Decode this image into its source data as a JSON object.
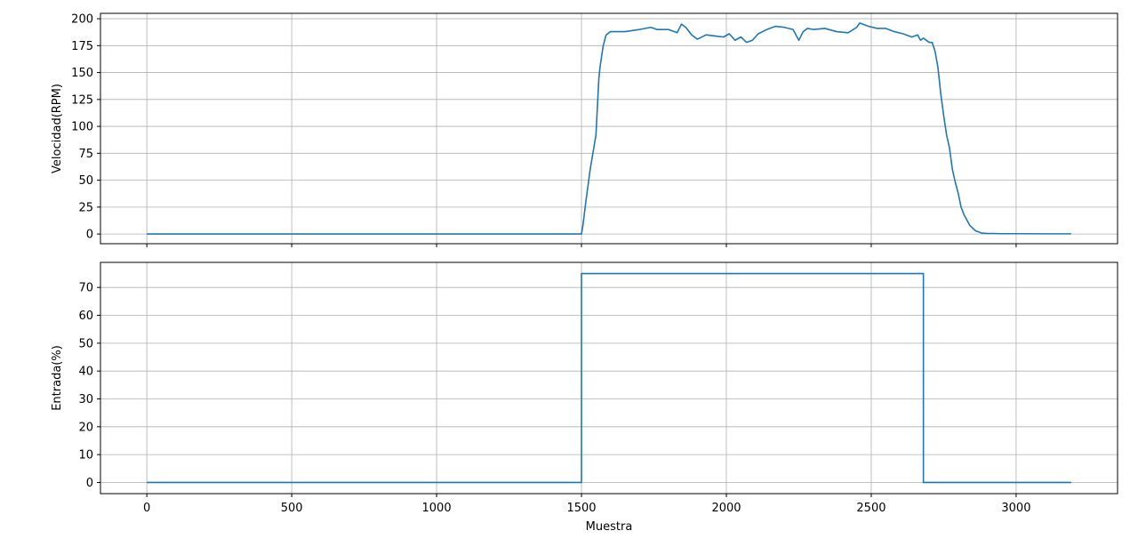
{
  "chart_data": [
    {
      "type": "line",
      "ylabel": "Velocidad(RPM)",
      "xlabel": "",
      "xlim": [
        -160,
        3350
      ],
      "ylim": [
        -9,
        205
      ],
      "xticks": [
        0,
        500,
        1000,
        1500,
        2000,
        2500,
        3000
      ],
      "xtick_labels_visible": false,
      "yticks": [
        0,
        25,
        50,
        75,
        100,
        125,
        150,
        175,
        200
      ],
      "grid": true,
      "color": "#1f77b4",
      "series": [
        {
          "x": [
            0,
            1500,
            1505,
            1515,
            1530,
            1550,
            1560,
            1565,
            1575,
            1585,
            1600,
            1620,
            1650,
            1700,
            1740,
            1760,
            1800,
            1830,
            1845,
            1860,
            1880,
            1900,
            1930,
            1960,
            1990,
            2010,
            2030,
            2050,
            2070,
            2090,
            2110,
            2140,
            2170,
            2200,
            2230,
            2250,
            2265,
            2280,
            2300,
            2340,
            2380,
            2420,
            2450,
            2460,
            2490,
            2520,
            2550,
            2580,
            2610,
            2640,
            2660,
            2670,
            2680,
            2700,
            2710,
            2720,
            2730,
            2740,
            2750,
            2760,
            2770,
            2780,
            2790,
            2800,
            2810,
            2820,
            2840,
            2860,
            2880,
            2900,
            2920,
            2950,
            3000,
            3100,
            3190
          ],
          "y": [
            0,
            0,
            8,
            30,
            60,
            92,
            145,
            157,
            175,
            185,
            188,
            188,
            188,
            190,
            192,
            190,
            190,
            187,
            195,
            192,
            185,
            181,
            185,
            184,
            183,
            186,
            180,
            183,
            178,
            180,
            186,
            190,
            193,
            192,
            190,
            180,
            188,
            191,
            190,
            191,
            188,
            187,
            192,
            196,
            193,
            191,
            191,
            188,
            186,
            183,
            185,
            180,
            182,
            178,
            178,
            170,
            155,
            130,
            110,
            92,
            80,
            60,
            48,
            38,
            25,
            18,
            8,
            3,
            1,
            0.5,
            0.5,
            0.3,
            0.3,
            0.2,
            0.2
          ]
        }
      ]
    },
    {
      "type": "line",
      "ylabel": "Entrada(%)",
      "xlabel": "Muestra",
      "xlim": [
        -160,
        3350
      ],
      "ylim": [
        -4,
        79
      ],
      "xticks": [
        0,
        500,
        1000,
        1500,
        2000,
        2500,
        3000
      ],
      "yticks": [
        0,
        10,
        20,
        30,
        40,
        50,
        60,
        70
      ],
      "grid": true,
      "color": "#1f77b4",
      "series": [
        {
          "x": [
            0,
            1500,
            1500,
            2680,
            2680,
            3190
          ],
          "y": [
            0,
            0,
            75,
            75,
            0,
            0
          ]
        }
      ]
    }
  ]
}
